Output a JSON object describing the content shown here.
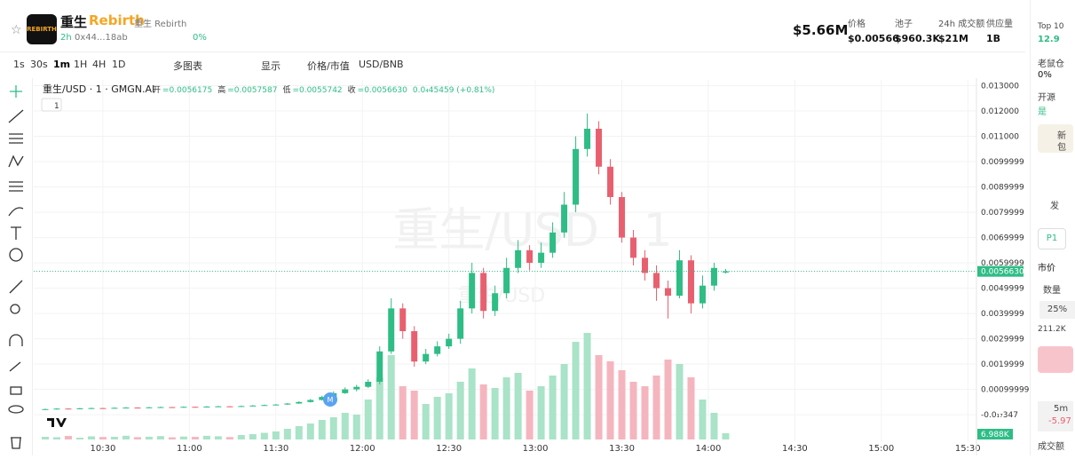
{
  "header": {
    "name": "重生",
    "ticker": "Rebirth",
    "alt_name": "重生 Rebirth",
    "logo_text": "REBIRTH",
    "age": "2h",
    "address": "0x44...18ab",
    "change": "0%",
    "market_cap": "$5.66M",
    "stats": [
      {
        "label": "价格",
        "value": "$0.00566"
      },
      {
        "label": "池子",
        "value": "$960.3K"
      },
      {
        "label": "24h 成交额",
        "value": "$21M"
      },
      {
        "label": "供应量",
        "value": "1B"
      }
    ]
  },
  "toolbar": {
    "intervals": [
      "1s",
      "30s",
      "1m",
      "1H",
      "4H",
      "1D"
    ],
    "multi": "多图表",
    "display": "显示",
    "price_mode": "价格/市值",
    "currency": "USD/BNB"
  },
  "sidebar": {
    "top10": "Top 10",
    "top10_value": "12.9",
    "rat": "老鼠仓",
    "rat_value": "0%",
    "open": "开源",
    "open_value": "是",
    "warn": "新",
    "warn2": "包",
    "post": "发",
    "p1": "P1",
    "market": "市价",
    "qty": "数量",
    "pct": "25%",
    "bal": "211.2K",
    "tf": "5m",
    "tf_change": "-5.97",
    "turnover": "成交额"
  },
  "chart_data": {
    "type": "candlestick",
    "symbol": "重生/USD · 1 · GMGN.AI",
    "interval_badge": "1",
    "marker": "M",
    "watermark": "重生/USD · 1",
    "watermark2": "重生/USD",
    "ohlc_legend": [
      {
        "label": "开",
        "value": "=0.0056175"
      },
      {
        "label": "高",
        "value": "=0.0057587"
      },
      {
        "label": "低",
        "value": "=0.0055742"
      },
      {
        "label": "收",
        "value": "=0.0056630"
      }
    ],
    "change_label": "0.0₄45459 (+0.81%)",
    "up_color": "#2ebd85",
    "down_color": "#e8606f",
    "volume_up_color": "#a9e3c8",
    "volume_down_color": "#f5b5bf",
    "x": [
      610,
      614,
      618,
      622,
      626,
      630,
      634,
      638,
      642,
      646,
      650,
      654,
      658,
      662,
      666,
      670,
      674,
      678,
      682,
      686,
      690,
      694,
      698,
      702,
      706,
      710,
      714,
      718,
      722,
      726,
      730,
      734,
      738,
      742,
      746,
      750,
      754,
      758,
      762,
      766,
      770,
      774,
      778,
      782,
      786,
      790,
      794,
      798,
      802,
      806,
      810,
      814,
      818,
      822,
      826,
      830,
      834,
      838,
      842,
      846
    ],
    "open": [
      0.00021,
      0.00022,
      0.00024,
      0.00023,
      0.00025,
      0.00026,
      0.00025,
      0.00027,
      0.00028,
      0.00027,
      0.00029,
      0.0003,
      0.00029,
      0.00031,
      0.0003,
      0.00032,
      0.00033,
      0.00032,
      0.00034,
      0.00036,
      0.00038,
      0.0004,
      0.00044,
      0.0005,
      0.00058,
      0.0007,
      0.00085,
      0.001,
      0.0011,
      0.0013,
      0.0025,
      0.0042,
      0.0033,
      0.0021,
      0.0024,
      0.0027,
      0.003,
      0.0042,
      0.0056,
      0.0041,
      0.0048,
      0.0058,
      0.0065,
      0.006,
      0.0064,
      0.0072,
      0.0083,
      0.0105,
      0.0113,
      0.0098,
      0.0086,
      0.007,
      0.0062,
      0.0056,
      0.005,
      0.0047,
      0.0061,
      0.0044,
      0.0051,
      0.0056175
    ],
    "high": [
      0.00024,
      0.00026,
      0.00025,
      0.00027,
      0.00028,
      0.00027,
      0.00029,
      0.0003,
      0.00029,
      0.00031,
      0.00032,
      0.00031,
      0.00033,
      0.00032,
      0.00034,
      0.00035,
      0.00034,
      0.00036,
      0.00038,
      0.0004,
      0.00042,
      0.00046,
      0.00053,
      0.00062,
      0.00075,
      0.00092,
      0.00108,
      0.00118,
      0.0014,
      0.0027,
      0.0046,
      0.0044,
      0.0035,
      0.0026,
      0.0029,
      0.0032,
      0.0045,
      0.006,
      0.0058,
      0.0051,
      0.0062,
      0.0069,
      0.0067,
      0.0068,
      0.0076,
      0.0088,
      0.011,
      0.0119,
      0.0116,
      0.0101,
      0.0088,
      0.0073,
      0.0065,
      0.0059,
      0.0053,
      0.0065,
      0.0063,
      0.0055,
      0.006,
      0.0057587
    ],
    "low": [
      0.0002,
      0.0002,
      0.00022,
      0.00022,
      0.00024,
      0.00024,
      0.00024,
      0.00026,
      0.00026,
      0.00026,
      0.00028,
      0.00028,
      0.00028,
      0.00029,
      0.00029,
      0.00031,
      0.00031,
      0.00031,
      0.00033,
      0.00035,
      0.00037,
      0.00039,
      0.00043,
      0.00048,
      0.00056,
      0.00068,
      0.00082,
      0.00092,
      0.00105,
      0.0012,
      0.0024,
      0.003,
      0.0019,
      0.002,
      0.0023,
      0.0026,
      0.0028,
      0.004,
      0.0038,
      0.0039,
      0.0046,
      0.0056,
      0.0057,
      0.0058,
      0.0062,
      0.007,
      0.008,
      0.0102,
      0.0095,
      0.0083,
      0.0068,
      0.0059,
      0.0053,
      0.0045,
      0.0038,
      0.0046,
      0.004,
      0.0042,
      0.0049,
      0.0055742
    ],
    "close": [
      0.00022,
      0.00024,
      0.00023,
      0.00025,
      0.00026,
      0.00025,
      0.00027,
      0.00028,
      0.00027,
      0.00029,
      0.0003,
      0.00029,
      0.00031,
      0.0003,
      0.00032,
      0.00033,
      0.00032,
      0.00034,
      0.00036,
      0.00038,
      0.0004,
      0.00044,
      0.0005,
      0.00058,
      0.0007,
      0.00085,
      0.001,
      0.0011,
      0.0013,
      0.0025,
      0.0042,
      0.0033,
      0.0021,
      0.0024,
      0.0027,
      0.003,
      0.0042,
      0.0056,
      0.0041,
      0.0048,
      0.0058,
      0.0065,
      0.006,
      0.0064,
      0.0072,
      0.0083,
      0.0105,
      0.0113,
      0.0098,
      0.0086,
      0.007,
      0.0062,
      0.0056,
      0.005,
      0.0047,
      0.0061,
      0.0044,
      0.0051,
      0.0058,
      0.005663
    ],
    "volume": [
      3000,
      2500,
      4000,
      2000,
      3500,
      2800,
      3000,
      4200,
      2600,
      3100,
      3800,
      2400,
      3300,
      2900,
      4100,
      3600,
      2700,
      5000,
      6000,
      7500,
      9000,
      12000,
      15000,
      18000,
      22000,
      25000,
      30000,
      28000,
      45000,
      70000,
      95000,
      60000,
      55000,
      40000,
      48000,
      52000,
      65000,
      80000,
      62000,
      58000,
      70000,
      75000,
      55000,
      60000,
      72000,
      85000,
      110000,
      120000,
      95000,
      88000,
      78000,
      65000,
      60000,
      72000,
      90000,
      85000,
      70000,
      45000,
      30000,
      6988
    ],
    "volume_last_label": "6.988K",
    "volume_lim": [
      0,
      150000
    ],
    "last_price": 0.005663,
    "last_price_label": "0.0056630",
    "xlim": [
      606,
      933
    ],
    "xticks": [
      {
        "value": 630,
        "label": "10:30"
      },
      {
        "value": 660,
        "label": "11:00"
      },
      {
        "value": 690,
        "label": "11:30"
      },
      {
        "value": 720,
        "label": "12:00"
      },
      {
        "value": 750,
        "label": "12:30"
      },
      {
        "value": 780,
        "label": "13:00"
      },
      {
        "value": 810,
        "label": "13:30"
      },
      {
        "value": 840,
        "label": "14:00"
      },
      {
        "value": 870,
        "label": "14:30"
      },
      {
        "value": 900,
        "label": "15:00"
      },
      {
        "value": 930,
        "label": "15:30"
      }
    ],
    "ylim": [
      -0.00105,
      0.01323
    ],
    "yticks": [
      {
        "value": 0.013,
        "label": "0.013000"
      },
      {
        "value": 0.012,
        "label": "0.012000"
      },
      {
        "value": 0.011,
        "label": "0.011000"
      },
      {
        "value": 0.0099999,
        "label": "0.0099999"
      },
      {
        "value": 0.0089999,
        "label": "0.0089999"
      },
      {
        "value": 0.0079999,
        "label": "0.0079999"
      },
      {
        "value": 0.0069999,
        "label": "0.0069999"
      },
      {
        "value": 0.0059999,
        "label": "0.0059999"
      },
      {
        "value": 0.0049999,
        "label": "0.0049999"
      },
      {
        "value": 0.0039999,
        "label": "0.0039999"
      },
      {
        "value": 0.0029999,
        "label": "0.0029999"
      },
      {
        "value": 0.0019999,
        "label": "0.0019999"
      },
      {
        "value": 0.00099999,
        "label": "0.00099999"
      },
      {
        "value": -3.47e-18,
        "label": "-0.0₁₇347"
      }
    ],
    "grid": true
  }
}
